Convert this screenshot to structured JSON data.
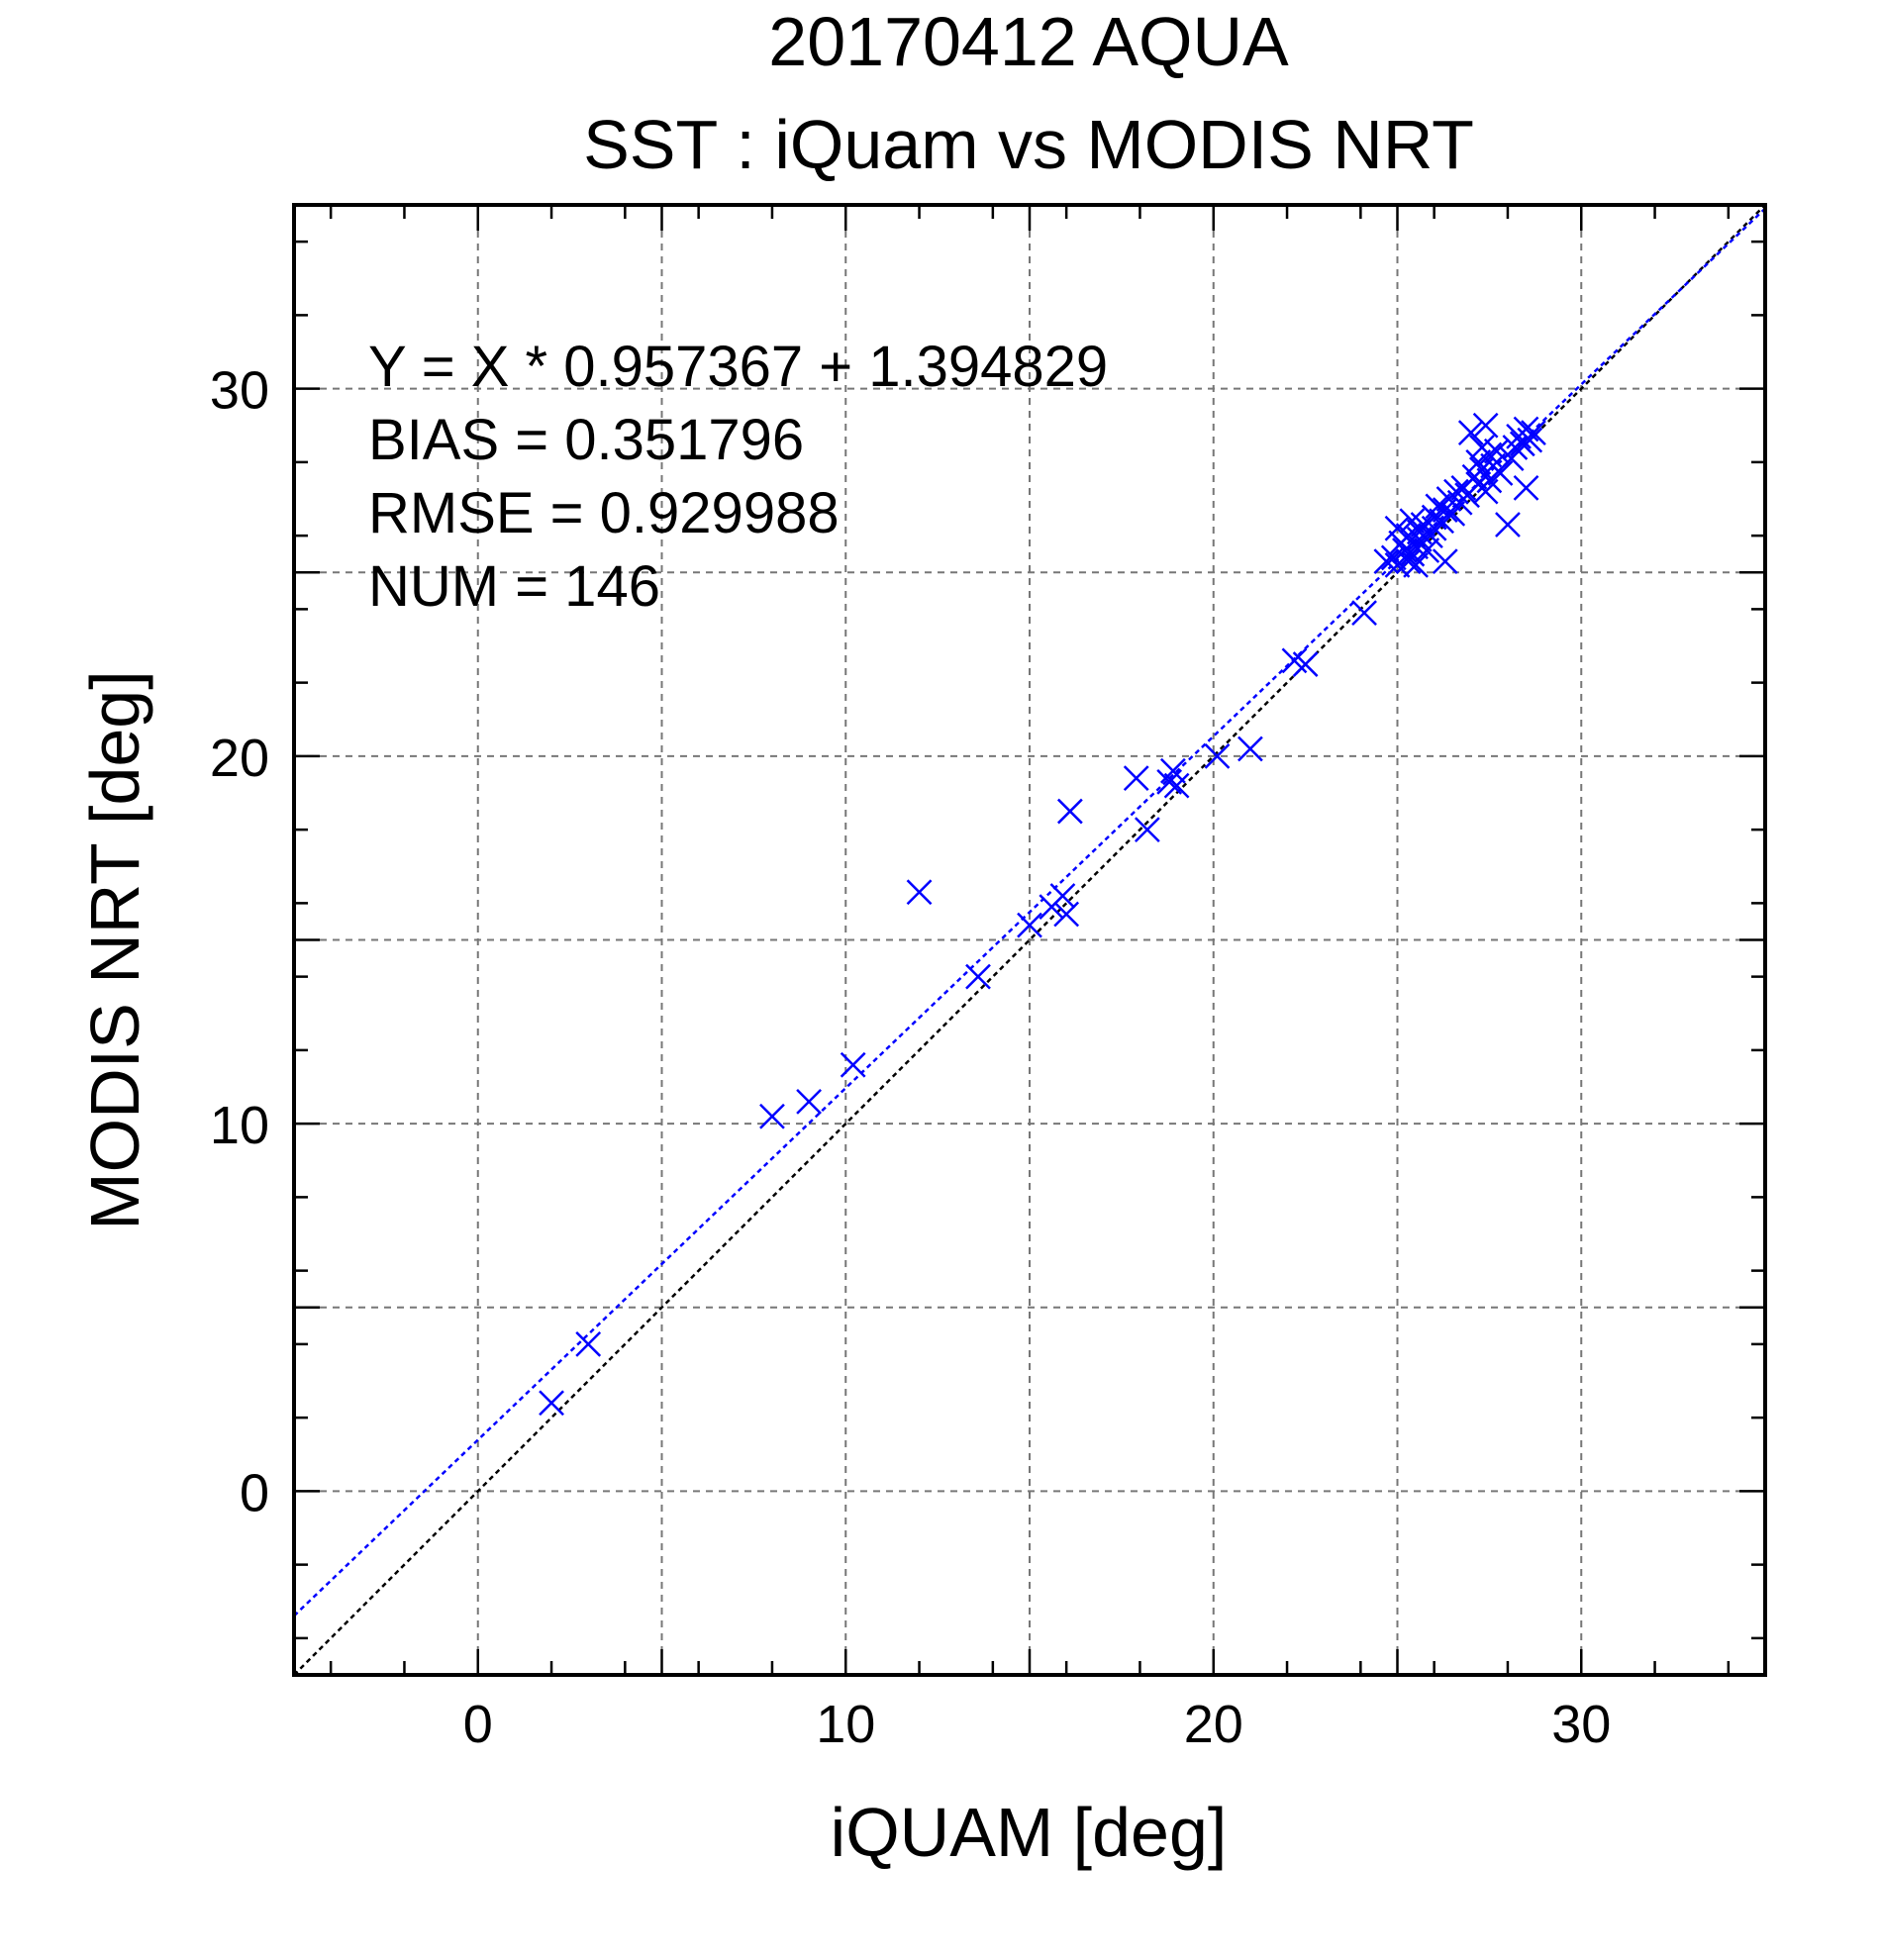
{
  "chart_data": {
    "type": "scatter",
    "title": "20170412 AQUA",
    "subtitle": "SST : iQuam vs MODIS NRT",
    "xlabel": "iQUAM [deg]",
    "ylabel": "MODIS NRT [deg]",
    "xlim": [
      -5,
      35
    ],
    "ylim": [
      -5,
      35
    ],
    "x_ticks": [
      0,
      10,
      20,
      30
    ],
    "y_ticks": [
      0,
      10,
      20,
      30
    ],
    "x_tick_labels": [
      "0",
      "10",
      "20",
      "30"
    ],
    "y_tick_labels": [
      "0",
      "10",
      "20",
      "30"
    ],
    "grid": true,
    "stats": [
      "Y = X * 0.957367 + 1.394829",
      "BIAS = 0.351796",
      "RMSE = 0.929988",
      "NUM = 146"
    ],
    "fit": {
      "slope": 0.957367,
      "intercept": 1.394829,
      "color": "#0000ff"
    },
    "identity_line_color": "#000000",
    "marker_color": "#0000ff",
    "marker": "x",
    "points": [
      [
        2.0,
        2.4
      ],
      [
        3.0,
        4.0
      ],
      [
        8.0,
        10.2
      ],
      [
        9.0,
        10.6
      ],
      [
        10.2,
        11.6
      ],
      [
        12.0,
        16.3
      ],
      [
        13.6,
        14.0
      ],
      [
        15.0,
        15.4
      ],
      [
        15.6,
        15.9
      ],
      [
        15.9,
        16.2
      ],
      [
        16.0,
        15.7
      ],
      [
        16.1,
        18.5
      ],
      [
        17.9,
        19.4
      ],
      [
        18.2,
        18.0
      ],
      [
        18.8,
        19.3
      ],
      [
        18.9,
        19.6
      ],
      [
        19.0,
        19.2
      ],
      [
        20.1,
        20.0
      ],
      [
        21.0,
        20.2
      ],
      [
        22.2,
        22.6
      ],
      [
        22.5,
        22.5
      ],
      [
        24.1,
        23.9
      ],
      [
        24.7,
        25.3
      ],
      [
        24.9,
        25.4
      ],
      [
        25.0,
        25.2
      ],
      [
        25.0,
        26.2
      ],
      [
        25.1,
        25.8
      ],
      [
        25.2,
        25.6
      ],
      [
        25.3,
        25.3
      ],
      [
        25.3,
        26.0
      ],
      [
        25.4,
        25.5
      ],
      [
        25.4,
        26.4
      ],
      [
        25.5,
        25.7
      ],
      [
        25.5,
        25.2
      ],
      [
        25.6,
        26.1
      ],
      [
        25.6,
        25.9
      ],
      [
        25.7,
        26.3
      ],
      [
        25.8,
        25.6
      ],
      [
        25.9,
        26.0
      ],
      [
        26.0,
        26.5
      ],
      [
        26.0,
        26.2
      ],
      [
        26.1,
        26.8
      ],
      [
        26.2,
        26.4
      ],
      [
        26.3,
        25.3
      ],
      [
        26.3,
        26.7
      ],
      [
        26.4,
        27.0
      ],
      [
        26.5,
        26.6
      ],
      [
        26.6,
        27.2
      ],
      [
        26.7,
        26.9
      ],
      [
        26.8,
        27.3
      ],
      [
        26.9,
        27.1
      ],
      [
        27.0,
        28.8
      ],
      [
        27.1,
        27.6
      ],
      [
        27.2,
        28.0
      ],
      [
        27.2,
        27.4
      ],
      [
        27.3,
        27.8
      ],
      [
        27.3,
        28.4
      ],
      [
        27.4,
        29.0
      ],
      [
        27.4,
        27.2
      ],
      [
        27.5,
        28.2
      ],
      [
        27.5,
        27.5
      ],
      [
        27.6,
        27.9
      ],
      [
        27.7,
        28.3
      ],
      [
        27.8,
        27.7
      ],
      [
        28.0,
        26.3
      ],
      [
        28.1,
        28.1
      ],
      [
        28.2,
        28.4
      ],
      [
        28.3,
        28.7
      ],
      [
        28.4,
        28.5
      ],
      [
        28.5,
        27.3
      ],
      [
        28.5,
        28.9
      ],
      [
        28.6,
        28.6
      ],
      [
        28.7,
        28.8
      ]
    ]
  }
}
